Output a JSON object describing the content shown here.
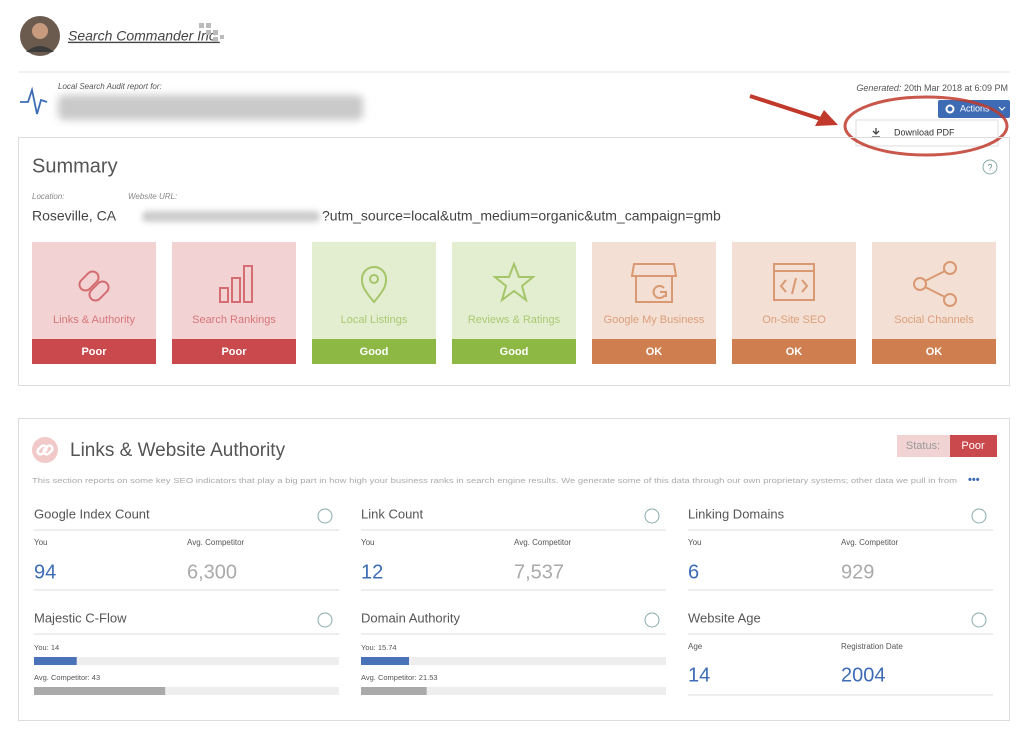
{
  "header": {
    "brand": "Search Commander Inc."
  },
  "report": {
    "label": "Local Search Audit report for:",
    "generated_label": "Generated:",
    "generated_value": "20th Mar 2018 at 6:09 PM",
    "actions": "Actions",
    "menu": [
      "Download PDF"
    ]
  },
  "summary": {
    "title": "Summary",
    "location_label": "Location:",
    "url_label": "Website URL:",
    "location": "Roseville, CA",
    "url": "?utm_source=local&utm_medium=organic&utm_campaign=gmb",
    "cards": [
      {
        "label": "Links & Authority",
        "status": "Poor",
        "color": "#c9494d"
      },
      {
        "label": "Search Rankings",
        "status": "Poor",
        "color": "#c9494d"
      },
      {
        "label": "Local Listings",
        "status": "Good",
        "color": "#8db843"
      },
      {
        "label": "Reviews & Ratings",
        "status": "Good",
        "color": "#8db843"
      },
      {
        "label": "Google My Business",
        "status": "OK",
        "color": "#cf7f4f"
      },
      {
        "label": "On-Site SEO",
        "status": "OK",
        "color": "#cf7f4f"
      },
      {
        "label": "Social Channels",
        "status": "OK",
        "color": "#cf7f4f"
      }
    ]
  },
  "links": {
    "title": "Links & Website Authority",
    "status_label": "Status:",
    "status": "Poor",
    "status_color": "#c9494d",
    "description": "This section reports on some key SEO indicators that play a big part in how high your business ranks in search engine results. We generate some of this data through our own proprietary systems; other data we pull in from",
    "metrics": [
      {
        "title": "Google Index Count",
        "columns": [
          "You",
          "Avg. Competitor"
        ],
        "values": [
          94,
          "6,300"
        ]
      },
      {
        "title": "Link Count",
        "columns": [
          "You",
          "Avg. Competitor"
        ],
        "values": [
          12,
          "7,537"
        ]
      },
      {
        "title": "Linking Domains",
        "columns": [
          "You",
          "Avg. Competitor"
        ],
        "values": [
          6,
          929
        ]
      }
    ],
    "bars": [
      {
        "title": "Majestic C-Flow",
        "items": [
          {
            "label": "You: 14",
            "value": 14
          },
          {
            "label": "Avg. Competitor: 43",
            "value": 43
          }
        ]
      },
      {
        "title": "Domain Authority",
        "items": [
          {
            "label": "You: 15.74",
            "value": 15.74
          },
          {
            "label": "Avg. Competitor: 21.53",
            "value": 21.53
          }
        ]
      }
    ],
    "age": {
      "title": "Website Age",
      "columns": [
        "Age",
        "Registration Date"
      ],
      "values": [
        14,
        2004
      ]
    }
  }
}
